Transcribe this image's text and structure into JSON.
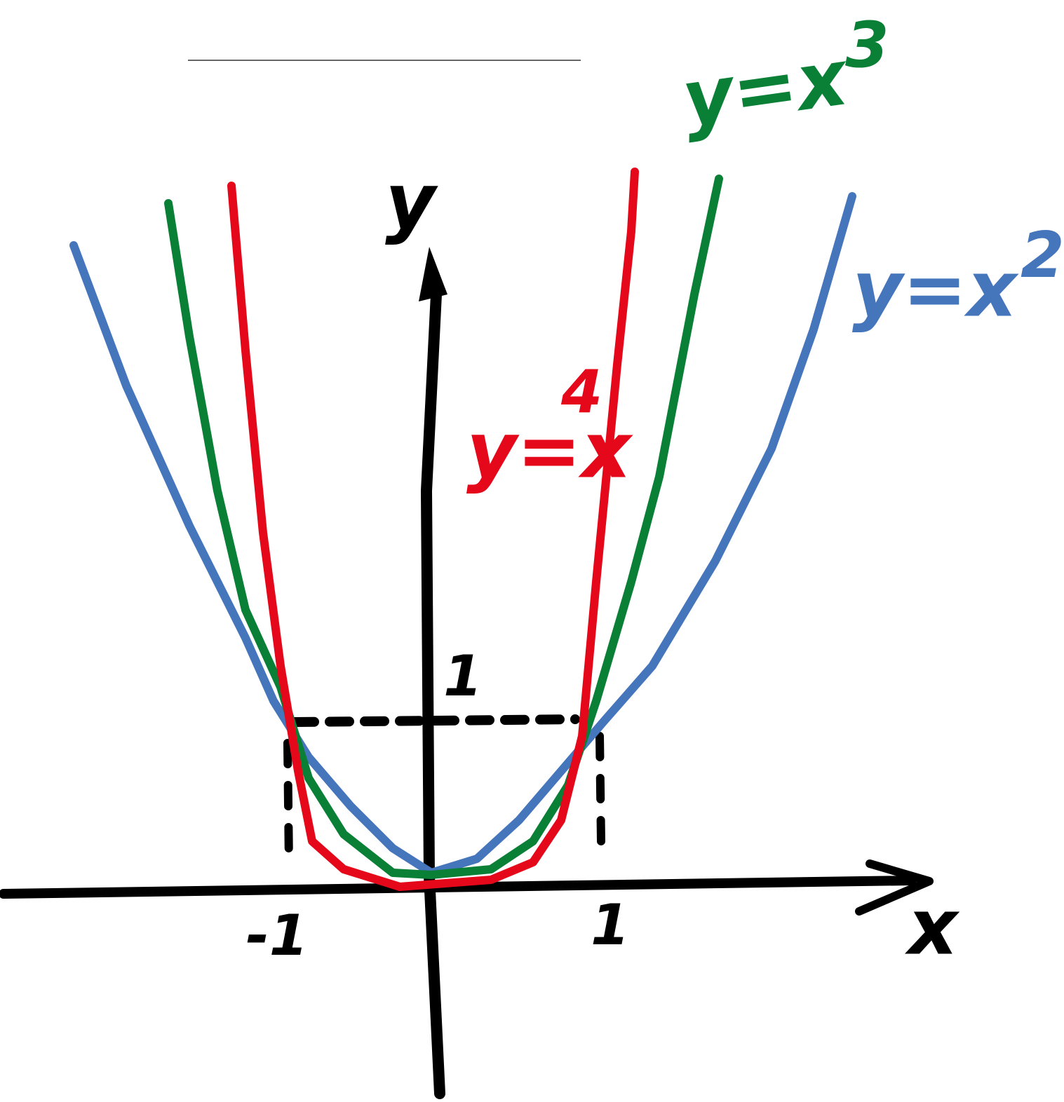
{
  "axes": {
    "y_label": "y",
    "x_label": "x",
    "y_unit": "1",
    "x_unit_neg": "-1",
    "x_unit_pos": "1"
  },
  "curves": [
    {
      "base": "y=x",
      "exp": "2"
    },
    {
      "base": "y=x",
      "exp": "3"
    },
    {
      "base": "y=x",
      "exp": "4"
    }
  ]
}
